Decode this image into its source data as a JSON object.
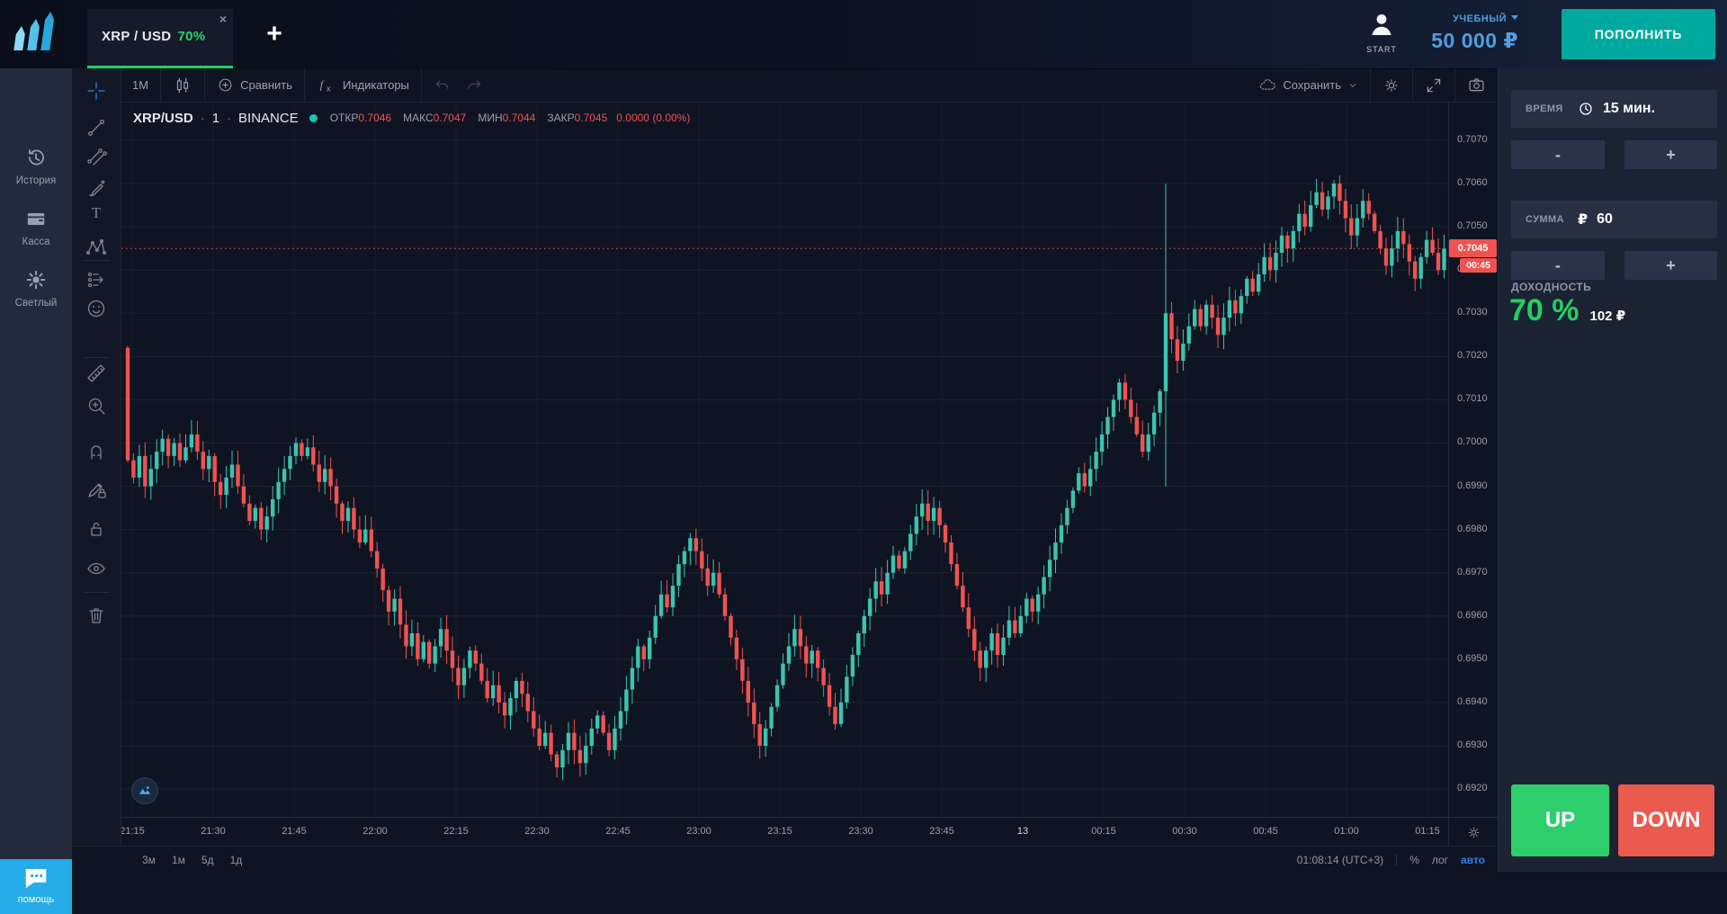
{
  "topbar": {
    "tab_symbol": "XRP / USD",
    "tab_payout": "70%",
    "tab_close": "×",
    "new_tab": "+",
    "avatar_label": "START",
    "account_type": "УЧЕБНЫЙ",
    "balance": "50 000 ₽",
    "deposit_label": "ПОПОЛНИТЬ"
  },
  "sidebar": {
    "items": [
      {
        "icon": "history-icon",
        "label": "История"
      },
      {
        "icon": "wallet-icon",
        "label": "Касса"
      },
      {
        "icon": "sun-icon",
        "label": "Светлый"
      }
    ],
    "help_label": "помощь"
  },
  "toolbar": {
    "interval": "1M",
    "compare_label": "Сравнить",
    "indicators_label": "Индикаторы",
    "save_label": "Сохранить"
  },
  "legend": {
    "symbol": "XRP/USD",
    "separator": "·",
    "interval": "1",
    "exchange": "BINANCE",
    "ohlc": [
      {
        "label": "ОТКР",
        "value": "0.7046"
      },
      {
        "label": "МАКС",
        "value": "0.7047"
      },
      {
        "label": "МИН",
        "value": "0.7044"
      },
      {
        "label": "ЗАКР",
        "value": "0.7045"
      }
    ],
    "change": "0.0000 (0.00%)"
  },
  "chart_data": {
    "type": "candlestick",
    "symbol": "XRP/USD",
    "interval_minutes": 1,
    "exchange": "BINANCE",
    "price_max": 0.707,
    "price_min": 0.692,
    "grid_step": 0.001,
    "current_price": 0.7045,
    "countdown": "00:45",
    "ohlc_current": {
      "open": 0.7046,
      "high": 0.7047,
      "low": 0.7044,
      "close": 0.7045
    },
    "y_labels": [
      "0.7070",
      "0.7060",
      "0.7050",
      "0.7040",
      "0.7030",
      "0.7020",
      "0.7010",
      "0.7000",
      "0.6990",
      "0.6980",
      "0.6970",
      "0.6960",
      "0.6950",
      "0.6940",
      "0.6930",
      "0.6920"
    ],
    "x_labels": [
      "21:15",
      "21:30",
      "21:45",
      "22:00",
      "22:15",
      "22:30",
      "22:45",
      "23:00",
      "23:15",
      "23:30",
      "23:45",
      "13",
      "00:15",
      "00:30",
      "00:45",
      "01:00",
      "01:15"
    ],
    "date_break_label": "13",
    "first_open": 0.7022,
    "spike": {
      "index": 179,
      "high": 0.706,
      "low": 0.699
    },
    "closes": [
      0.6996,
      0.6992,
      0.6997,
      0.699,
      0.6994,
      0.6998,
      0.7001,
      0.6997,
      0.7,
      0.6996,
      0.6999,
      0.7002,
      0.6998,
      0.6994,
      0.6997,
      0.6991,
      0.6988,
      0.6992,
      0.6995,
      0.699,
      0.6986,
      0.6982,
      0.6985,
      0.698,
      0.6983,
      0.6987,
      0.6991,
      0.6994,
      0.6997,
      0.7,
      0.6997,
      0.6999,
      0.6995,
      0.6991,
      0.6994,
      0.699,
      0.6986,
      0.6982,
      0.6985,
      0.698,
      0.6977,
      0.698,
      0.6975,
      0.6971,
      0.6966,
      0.6961,
      0.6964,
      0.6958,
      0.6953,
      0.6956,
      0.695,
      0.6954,
      0.6949,
      0.6953,
      0.6957,
      0.6952,
      0.6948,
      0.6944,
      0.6948,
      0.6952,
      0.6949,
      0.6945,
      0.6941,
      0.6944,
      0.694,
      0.6937,
      0.6941,
      0.6945,
      0.6942,
      0.6938,
      0.6934,
      0.693,
      0.6933,
      0.6928,
      0.6925,
      0.6929,
      0.6933,
      0.6929,
      0.6926,
      0.693,
      0.6934,
      0.6937,
      0.6933,
      0.6929,
      0.6934,
      0.6938,
      0.6943,
      0.6948,
      0.6953,
      0.695,
      0.6955,
      0.696,
      0.6965,
      0.6962,
      0.6967,
      0.6972,
      0.6975,
      0.6978,
      0.6975,
      0.6971,
      0.6967,
      0.697,
      0.6965,
      0.696,
      0.6955,
      0.695,
      0.6945,
      0.694,
      0.6935,
      0.693,
      0.6934,
      0.6939,
      0.6944,
      0.6949,
      0.6953,
      0.6957,
      0.6953,
      0.6949,
      0.6952,
      0.6948,
      0.6944,
      0.6939,
      0.6935,
      0.694,
      0.6946,
      0.6951,
      0.6956,
      0.696,
      0.6964,
      0.6968,
      0.6965,
      0.697,
      0.6974,
      0.6971,
      0.6975,
      0.6979,
      0.6983,
      0.6986,
      0.6982,
      0.6985,
      0.6981,
      0.6977,
      0.6972,
      0.6967,
      0.6962,
      0.6957,
      0.6952,
      0.6948,
      0.6952,
      0.6956,
      0.6951,
      0.6955,
      0.6959,
      0.6956,
      0.696,
      0.6964,
      0.6961,
      0.6965,
      0.6969,
      0.6973,
      0.6977,
      0.6981,
      0.6985,
      0.6989,
      0.6993,
      0.699,
      0.6994,
      0.6998,
      0.7002,
      0.7006,
      0.701,
      0.7014,
      0.701,
      0.7006,
      0.7002,
      0.6998,
      0.7002,
      0.7007,
      0.7012,
      0.703,
      0.7024,
      0.7019,
      0.7023,
      0.7027,
      0.7031,
      0.7027,
      0.7032,
      0.7029,
      0.7025,
      0.7029,
      0.7033,
      0.703,
      0.7034,
      0.7038,
      0.7035,
      0.7039,
      0.7043,
      0.704,
      0.7044,
      0.7048,
      0.7045,
      0.7049,
      0.7053,
      0.705,
      0.7055,
      0.7058,
      0.7054,
      0.7057,
      0.706,
      0.7056,
      0.7052,
      0.7048,
      0.7052,
      0.7056,
      0.7053,
      0.7049,
      0.7045,
      0.7041,
      0.7045,
      0.7049,
      0.7046,
      0.7042,
      0.7038,
      0.7043,
      0.7047,
      0.7044,
      0.704,
      0.7045
    ]
  },
  "drawing_toolbar": {
    "tools": [
      "crosshair",
      "trend-line",
      "fib-retracement",
      "brush",
      "text",
      "xabcd-pattern",
      "forecast",
      "emoji",
      "ruler",
      "magnifier",
      "magnet",
      "draw-lock",
      "lock",
      "eye",
      "trash"
    ]
  },
  "bottom_bar": {
    "ranges": [
      "3м",
      "1м",
      "5д",
      "1д"
    ],
    "clock": "01:08:14 (UTC+3)",
    "percent_label": "%",
    "log_label": "лог",
    "auto_label": "авто"
  },
  "trade_panel": {
    "time_label": "ВРЕМЯ",
    "time_value": "15 мин.",
    "minus_label": "-",
    "plus_label": "+",
    "amount_label": "СУММА",
    "currency_symbol": "₽",
    "amount_value": "60",
    "profit_label": "ДОХОДНОСТЬ",
    "profit_percent": "70 %",
    "profit_amount": "102 ₽",
    "up_label": "UP",
    "down_label": "DOWN"
  },
  "colors": {
    "up_candle": "#3bc4af",
    "down_candle": "#ef5350",
    "current_price_red": "#ef5350",
    "accent_green": "#21d065",
    "accent_blue": "#4f9fe0",
    "deposit_teal": "#00a99e",
    "up_button": "#2ece6d",
    "down_button": "#ea5a4f",
    "auto_blue": "#2d7ff0",
    "help_blue": "#26ace8"
  }
}
